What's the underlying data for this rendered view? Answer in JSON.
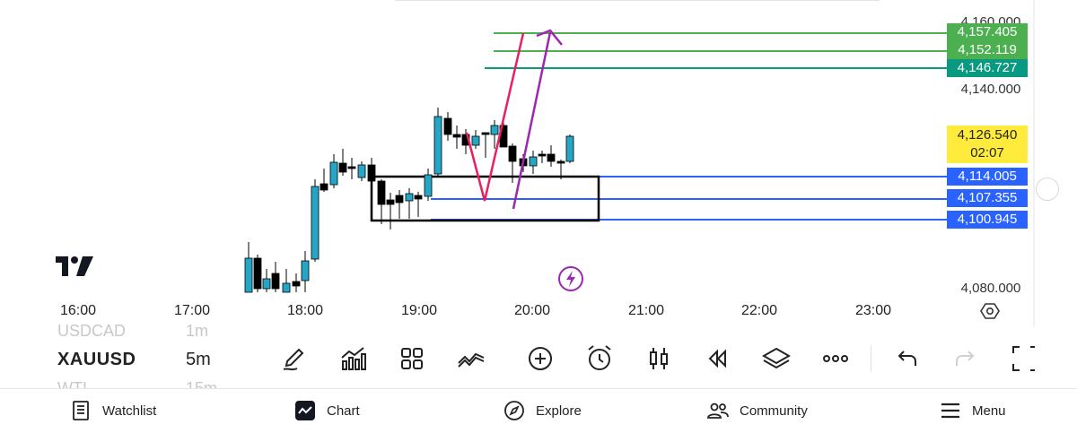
{
  "symbol_list": {
    "prev": {
      "symbol": "USDCAD",
      "interval": "1m"
    },
    "current": {
      "symbol": "XAUUSD",
      "interval": "5m"
    },
    "next": {
      "symbol": "WTI",
      "interval": "15m"
    }
  },
  "price_axis": {
    "labels": [
      "4,160.000",
      "4,140.000",
      "4,080.000"
    ]
  },
  "price_tags": [
    {
      "label": "4,157.405",
      "color": "#4caf50"
    },
    {
      "label": "4,152.119",
      "color": "#4caf50"
    },
    {
      "label": "4,146.727",
      "color": "#089981"
    },
    {
      "label": "4,114.005",
      "color": "#2962ff"
    },
    {
      "label": "4,107.355",
      "color": "#2962ff"
    },
    {
      "label": "4,100.945",
      "color": "#2962ff"
    }
  ],
  "current_price": {
    "price": "4,126.540",
    "countdown": "02:07",
    "color": "#ffeb3b"
  },
  "time_axis": [
    "16:00",
    "17:00",
    "18:00",
    "19:00",
    "20:00",
    "21:00",
    "22:00",
    "23:00"
  ],
  "colors": {
    "bull": "#26a6c6",
    "bear": "#000000",
    "pink_line": "#e91e63",
    "purple_line": "#9c27b0"
  },
  "toolbar_icons": [
    "pencil-icon",
    "indicators-icon",
    "apps-icon",
    "multi-chart-icon",
    "add-icon",
    "alarm-icon",
    "candlestick-icon",
    "replay-icon",
    "layers-icon",
    "more-icon",
    "undo-icon",
    "redo-icon",
    "fullscreen-icon"
  ],
  "bottom_nav": [
    {
      "label": "Watchlist",
      "icon": "watchlist-icon"
    },
    {
      "label": "Chart",
      "icon": "chart-icon"
    },
    {
      "label": "Explore",
      "icon": "compass-icon"
    },
    {
      "label": "Community",
      "icon": "community-icon"
    },
    {
      "label": "Menu",
      "icon": "menu-icon"
    }
  ]
}
